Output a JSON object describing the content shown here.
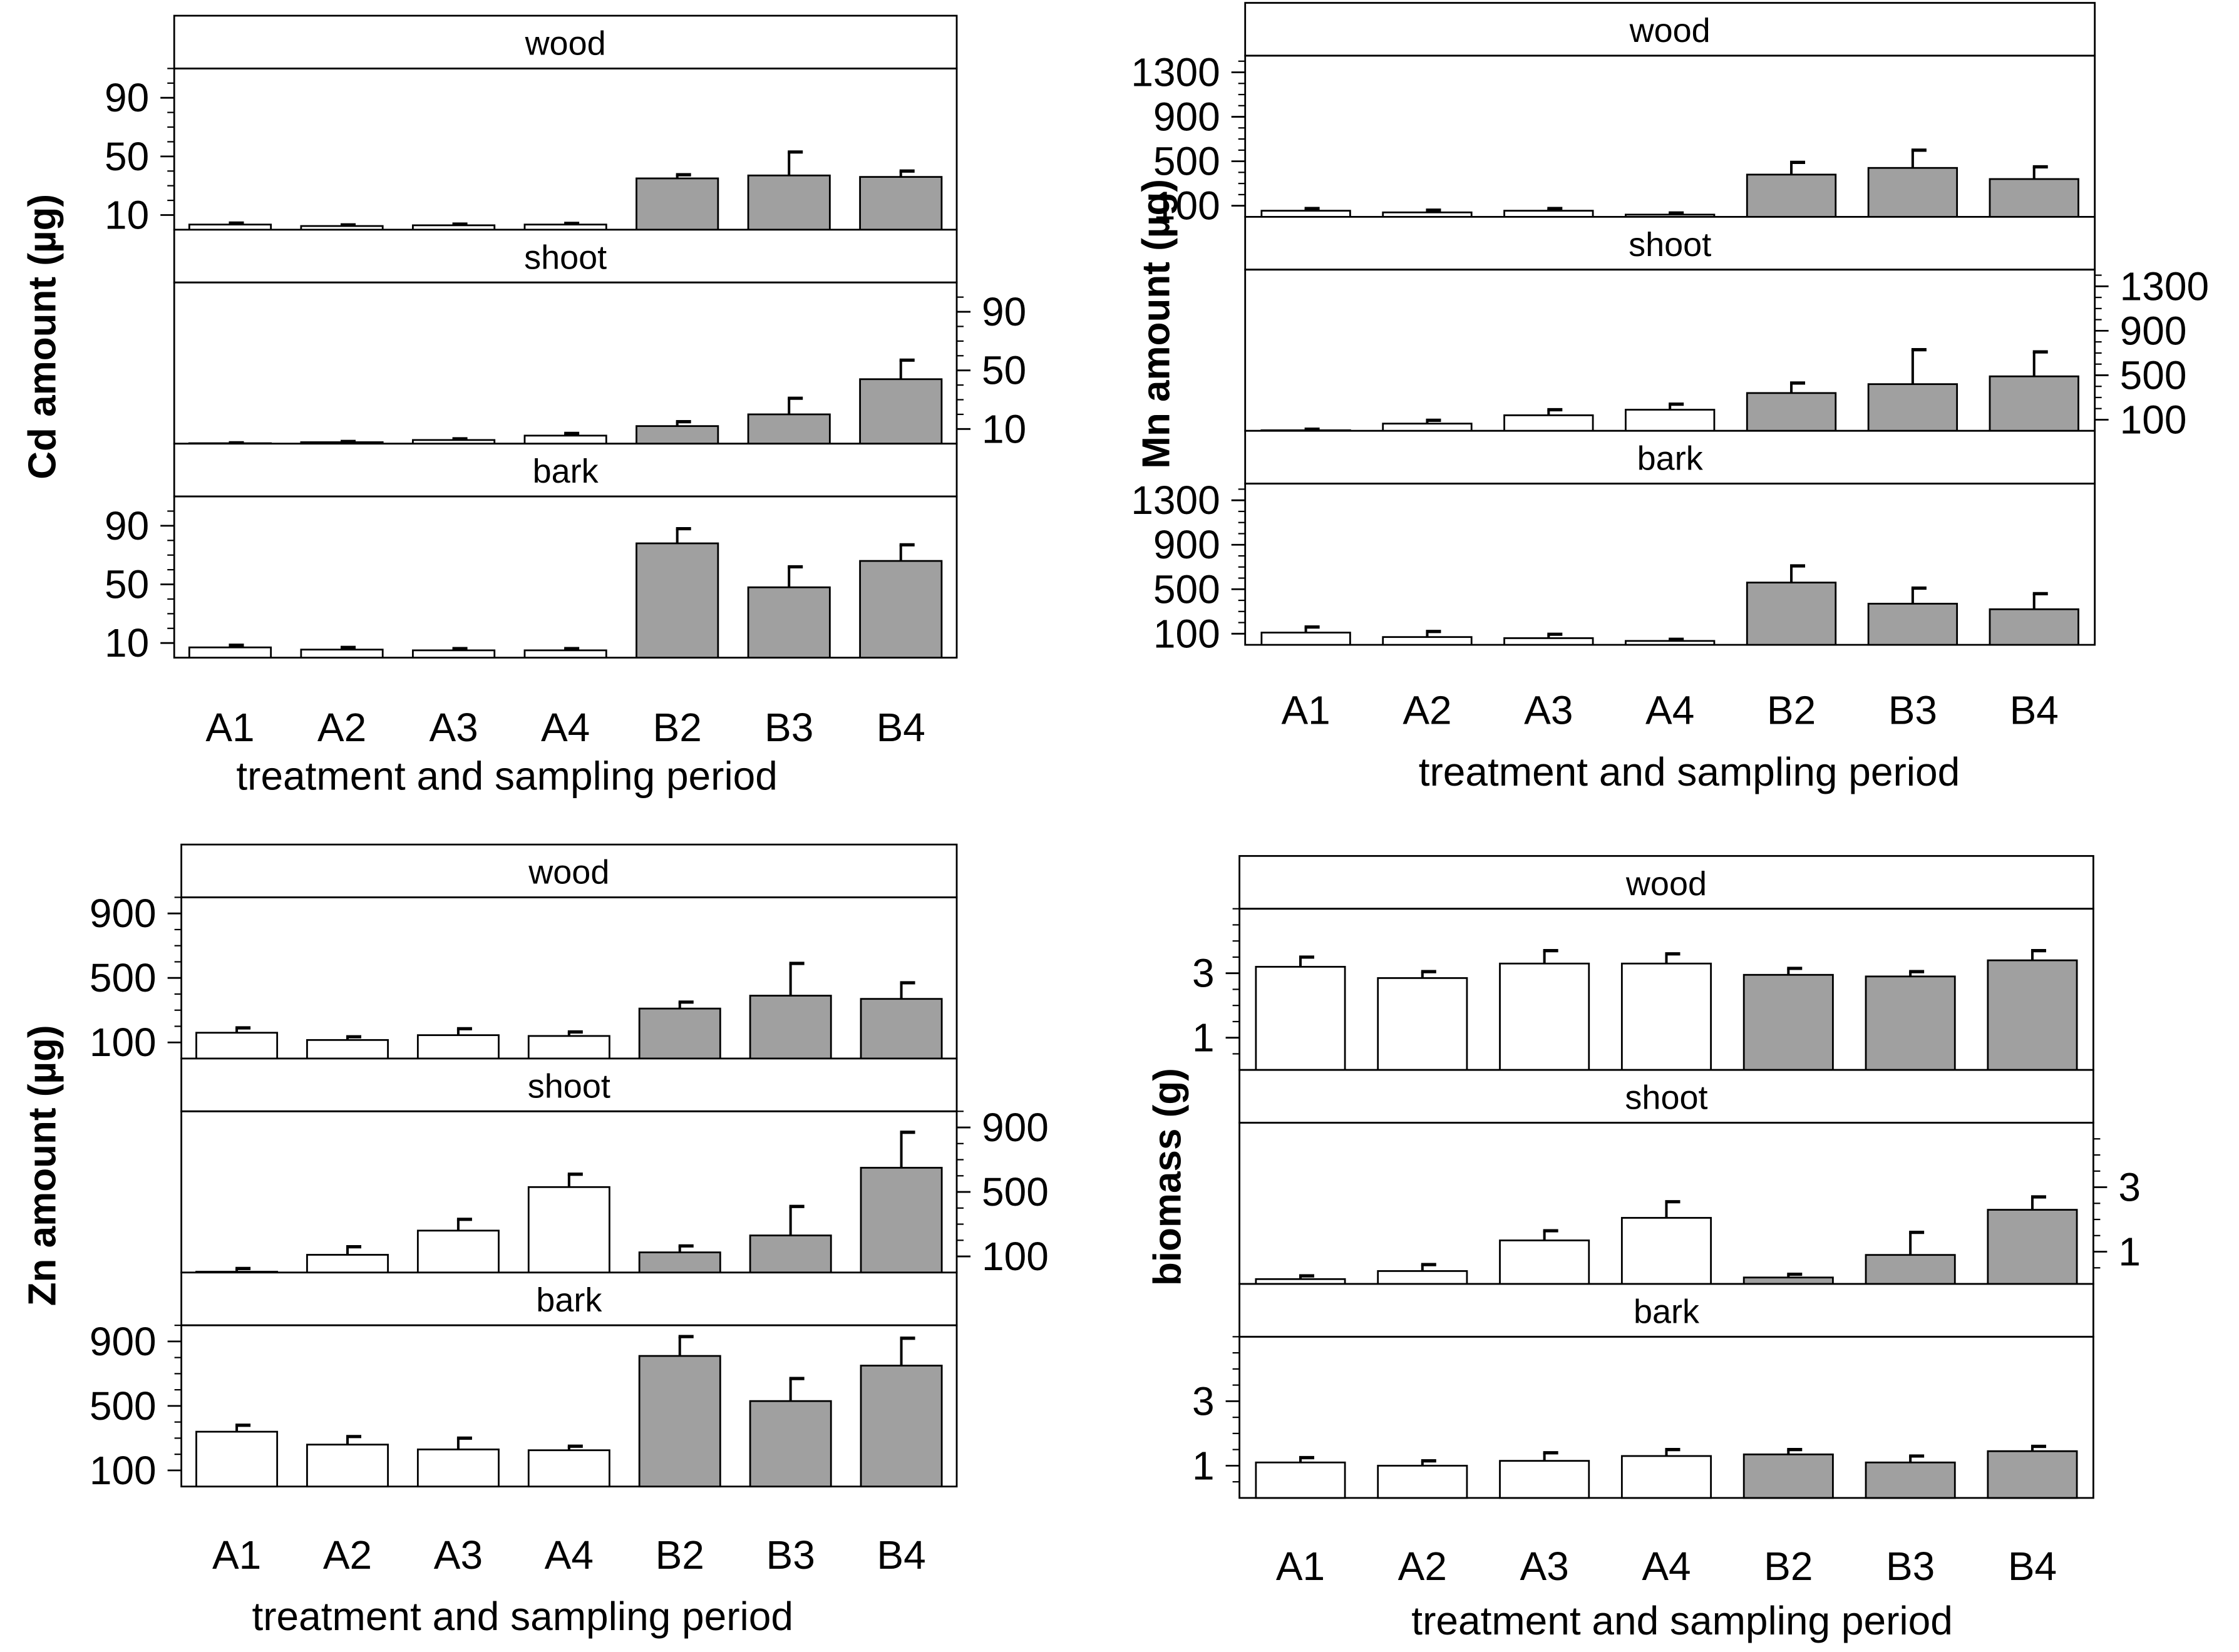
{
  "chart_data": [
    {
      "type": "bar",
      "ylabel": "Cd amount (µg)",
      "xlabel": "treatment and sampling period",
      "categories": [
        "A1",
        "A2",
        "A3",
        "A4",
        "B2",
        "B3",
        "B4"
      ],
      "bar_colors": [
        "#ffffff",
        "#ffffff",
        "#ffffff",
        "#ffffff",
        "#a0a0a0",
        "#a0a0a0",
        "#a0a0a0"
      ],
      "ylim": [
        0,
        110
      ],
      "yticks": [
        10,
        50,
        90
      ],
      "panels": [
        {
          "label": "wood",
          "axis_side": "left",
          "values": [
            3.5,
            2.5,
            3,
            3.5,
            35,
            37,
            36
          ],
          "errors": [
            1,
            0.8,
            0.8,
            0.8,
            2.5,
            16,
            4
          ]
        },
        {
          "label": "shoot",
          "axis_side": "right",
          "values": [
            0.3,
            1,
            2.5,
            5.5,
            12,
            20,
            44
          ],
          "errors": [
            0.3,
            0.5,
            0.8,
            1.5,
            3,
            11,
            13
          ]
        },
        {
          "label": "bark",
          "axis_side": "left",
          "values": [
            7,
            5.5,
            5,
            5,
            78,
            48,
            66
          ],
          "errors": [
            1.5,
            1.5,
            1.2,
            1.2,
            10,
            14,
            11
          ]
        }
      ]
    },
    {
      "type": "bar",
      "ylabel": "Mn amount (µg)",
      "xlabel": "treatment and sampling period",
      "categories": [
        "A1",
        "A2",
        "A3",
        "A4",
        "B2",
        "B3",
        "B4"
      ],
      "bar_colors": [
        "#ffffff",
        "#ffffff",
        "#ffffff",
        "#ffffff",
        "#a0a0a0",
        "#a0a0a0",
        "#a0a0a0"
      ],
      "ylim": [
        0,
        1450
      ],
      "yticks": [
        100,
        500,
        900,
        1300
      ],
      "panels": [
        {
          "label": "wood",
          "axis_side": "left",
          "values": [
            55,
            40,
            55,
            20,
            380,
            440,
            340
          ],
          "errors": [
            20,
            20,
            20,
            15,
            110,
            160,
            110
          ]
        },
        {
          "label": "shoot",
          "axis_side": "right",
          "values": [
            5,
            65,
            140,
            190,
            340,
            420,
            490
          ],
          "errors": [
            10,
            30,
            50,
            50,
            90,
            310,
            220
          ]
        },
        {
          "label": "bark",
          "axis_side": "left",
          "values": [
            110,
            70,
            60,
            35,
            560,
            370,
            320
          ],
          "errors": [
            50,
            50,
            35,
            15,
            150,
            140,
            140
          ]
        }
      ]
    },
    {
      "type": "bar",
      "ylabel": "Zn amount (µg)",
      "xlabel": "treatment and sampling period",
      "categories": [
        "A1",
        "A2",
        "A3",
        "A4",
        "B2",
        "B3",
        "B4"
      ],
      "bar_colors": [
        "#ffffff",
        "#ffffff",
        "#ffffff",
        "#ffffff",
        "#a0a0a0",
        "#a0a0a0",
        "#a0a0a0"
      ],
      "ylim": [
        0,
        1000
      ],
      "yticks": [
        100,
        500,
        900
      ],
      "panels": [
        {
          "label": "wood",
          "axis_side": "left",
          "values": [
            160,
            115,
            145,
            140,
            310,
            390,
            370
          ],
          "errors": [
            30,
            20,
            40,
            25,
            40,
            200,
            100
          ]
        },
        {
          "label": "shoot",
          "axis_side": "right",
          "values": [
            5,
            110,
            260,
            530,
            125,
            230,
            650
          ],
          "errors": [
            20,
            50,
            70,
            80,
            40,
            180,
            220
          ]
        },
        {
          "label": "bark",
          "axis_side": "left",
          "values": [
            340,
            260,
            230,
            225,
            810,
            530,
            750
          ],
          "errors": [
            40,
            50,
            70,
            25,
            120,
            140,
            170
          ]
        }
      ]
    },
    {
      "type": "bar",
      "ylabel": "biomass (g)",
      "xlabel": "treatment and sampling period",
      "categories": [
        "A1",
        "A2",
        "A3",
        "A4",
        "B2",
        "B3",
        "B4"
      ],
      "bar_colors": [
        "#ffffff",
        "#ffffff",
        "#ffffff",
        "#ffffff",
        "#a0a0a0",
        "#a0a0a0",
        "#a0a0a0"
      ],
      "ylim": [
        0,
        5
      ],
      "yticks": [
        1,
        3
      ],
      "panels": [
        {
          "label": "wood",
          "axis_side": "left",
          "values": [
            3.2,
            2.85,
            3.3,
            3.3,
            2.95,
            2.9,
            3.4
          ],
          "errors": [
            0.3,
            0.2,
            0.4,
            0.3,
            0.2,
            0.15,
            0.3
          ]
        },
        {
          "label": "shoot",
          "axis_side": "right",
          "values": [
            0.15,
            0.4,
            1.35,
            2.05,
            0.2,
            0.9,
            2.3
          ],
          "errors": [
            0.1,
            0.2,
            0.3,
            0.5,
            0.1,
            0.7,
            0.4
          ]
        },
        {
          "label": "bark",
          "axis_side": "left",
          "values": [
            1.1,
            1.0,
            1.15,
            1.3,
            1.35,
            1.1,
            1.45
          ],
          "errors": [
            0.15,
            0.15,
            0.25,
            0.2,
            0.15,
            0.2,
            0.15
          ]
        }
      ]
    }
  ]
}
